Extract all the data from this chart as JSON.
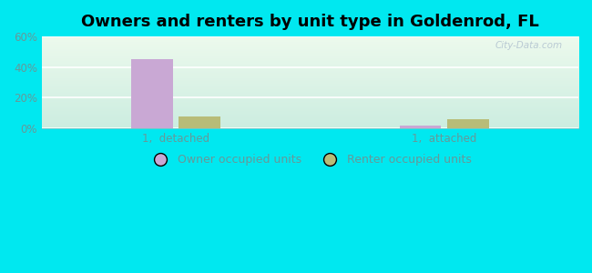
{
  "title": "Owners and renters by unit type in Goldenrod, FL",
  "categories": [
    "1,  detached",
    "1,  attached"
  ],
  "owner_values": [
    45.0,
    2.0
  ],
  "renter_values": [
    8.0,
    6.0
  ],
  "owner_color": "#c9a8d4",
  "renter_color": "#b8bc78",
  "ylim": [
    0,
    60
  ],
  "yticks": [
    0,
    20,
    40,
    60
  ],
  "ytick_labels": [
    "0%",
    "20%",
    "40%",
    "60%"
  ],
  "background_outer": "#00e8f0",
  "background_inner_topleft": "#eef8ee",
  "background_inner_topright": "#d8f0e8",
  "background_inner_bottomleft": "#d0eee8",
  "background_inner_bottomright": "#c8ece4",
  "watermark": "City-Data.com",
  "bar_width": 0.28,
  "group_positions": [
    0.7,
    2.5
  ],
  "legend_owner": "Owner occupied units",
  "legend_renter": "Renter occupied units",
  "title_fontsize": 13,
  "tick_fontsize": 8.5,
  "legend_fontsize": 9,
  "axis_color": "#66cccc",
  "tick_color": "#669999"
}
